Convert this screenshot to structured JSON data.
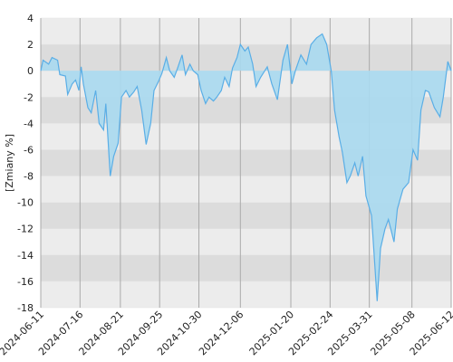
{
  "chart_data": {
    "type": "area",
    "y_label": "[Zmiany %]",
    "x": [
      "2024-06-11",
      "2024-06-13",
      "2024-06-18",
      "2024-06-21",
      "2024-06-26",
      "2024-06-28",
      "2024-07-03",
      "2024-07-05",
      "2024-07-09",
      "2024-07-12",
      "2024-07-15",
      "2024-07-17",
      "2024-07-19",
      "2024-07-23",
      "2024-07-26",
      "2024-07-30",
      "2024-08-02",
      "2024-08-06",
      "2024-08-08",
      "2024-08-12",
      "2024-08-15",
      "2024-08-19",
      "2024-08-22",
      "2024-08-26",
      "2024-08-29",
      "2024-09-02",
      "2024-09-05",
      "2024-09-09",
      "2024-09-13",
      "2024-09-17",
      "2024-09-20",
      "2024-09-24",
      "2024-09-27",
      "2024-10-01",
      "2024-10-04",
      "2024-10-08",
      "2024-10-11",
      "2024-10-15",
      "2024-10-18",
      "2024-10-22",
      "2024-10-25",
      "2024-10-29",
      "2024-11-01",
      "2024-11-05",
      "2024-11-08",
      "2024-11-12",
      "2024-11-15",
      "2024-11-19",
      "2024-11-22",
      "2024-11-26",
      "2024-11-29",
      "2024-12-03",
      "2024-12-06",
      "2024-12-10",
      "2024-12-13",
      "2024-12-17",
      "2024-12-20",
      "2024-12-24",
      "2024-12-30",
      "2025-01-03",
      "2025-01-08",
      "2025-01-13",
      "2025-01-17",
      "2025-01-21",
      "2025-01-24",
      "2025-01-29",
      "2025-02-03",
      "2025-02-07",
      "2025-02-12",
      "2025-02-17",
      "2025-02-21",
      "2025-02-25",
      "2025-02-28",
      "2025-03-04",
      "2025-03-07",
      "2025-03-11",
      "2025-03-14",
      "2025-03-18",
      "2025-03-21",
      "2025-03-25",
      "2025-03-28",
      "2025-04-02",
      "2025-04-07",
      "2025-04-10",
      "2025-04-14",
      "2025-04-17",
      "2025-04-22",
      "2025-04-25",
      "2025-04-30",
      "2025-05-05",
      "2025-05-09",
      "2025-05-13",
      "2025-05-16",
      "2025-05-20",
      "2025-05-23",
      "2025-05-28",
      "2025-06-02",
      "2025-06-05",
      "2025-06-09",
      "2025-06-12"
    ],
    "values": [
      0,
      0.8,
      0.5,
      1.0,
      0.8,
      -0.3,
      -0.4,
      -1.8,
      -1.0,
      -0.7,
      -1.5,
      0.3,
      -1.0,
      -2.8,
      -3.2,
      -1.5,
      -4.0,
      -4.5,
      -2.5,
      -8.0,
      -6.5,
      -5.5,
      -2.0,
      -1.5,
      -2.0,
      -1.6,
      -1.2,
      -3.0,
      -5.6,
      -4.0,
      -1.5,
      -0.8,
      -0.2,
      1.0,
      0.0,
      -0.5,
      0.2,
      1.2,
      -0.3,
      0.5,
      0.0,
      -0.3,
      -1.5,
      -2.5,
      -2.0,
      -2.3,
      -2.0,
      -1.5,
      -0.5,
      -1.2,
      0.2,
      1.0,
      2.0,
      1.5,
      1.8,
      0.5,
      -1.2,
      -0.5,
      0.3,
      -1.0,
      -2.2,
      0.8,
      2.0,
      -1.0,
      0.0,
      1.2,
      0.5,
      2.0,
      2.5,
      2.8,
      2.0,
      0.0,
      -3.0,
      -5.0,
      -6.2,
      -8.5,
      -8.0,
      -7.0,
      -8.0,
      -6.5,
      -9.5,
      -11.0,
      -17.5,
      -13.5,
      -12.0,
      -11.3,
      -13.0,
      -10.5,
      -9.0,
      -8.5,
      -6.0,
      -6.8,
      -3.0,
      -1.5,
      -1.6,
      -2.8,
      -3.5,
      -2.0,
      0.7,
      0.0
    ],
    "color": "#5aaee6",
    "fill_color": "#a9d9ef",
    "xlim": [
      "2024-06-11",
      "2025-06-12"
    ],
    "xticks": [
      "2024-06-11",
      "2024-07-16",
      "2024-08-21",
      "2024-09-25",
      "2024-10-30",
      "2024-12-06",
      "2025-01-20",
      "2025-02-24",
      "2025-03-31",
      "2025-05-08",
      "2025-06-12"
    ],
    "ylim": [
      -18,
      4
    ],
    "yticks": [
      -18,
      -16,
      -14,
      -12,
      -10,
      -8,
      -6,
      -4,
      -2,
      0,
      2,
      4
    ],
    "grid": true
  }
}
